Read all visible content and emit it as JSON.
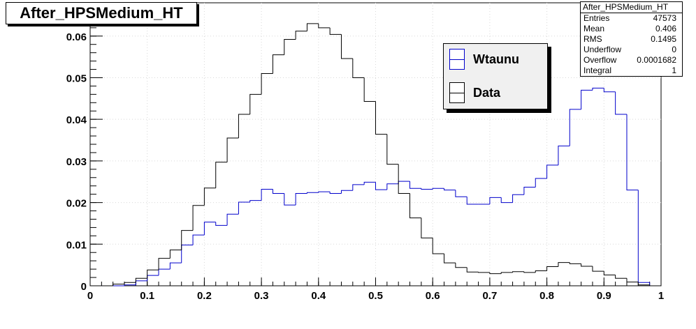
{
  "histogram_title": "After_HPSMedium_HT",
  "stats": {
    "name": "After_HPSMedium_HT",
    "rows": [
      {
        "key": "Entries",
        "value": "47573"
      },
      {
        "key": "Mean",
        "value": "0.406"
      },
      {
        "key": "RMS",
        "value": "0.1495"
      },
      {
        "key": "Underflow",
        "value": "0"
      },
      {
        "key": "Overflow",
        "value": "0.0001682"
      },
      {
        "key": "Integral",
        "value": "1"
      }
    ]
  },
  "legend": {
    "entries": [
      {
        "label": "Wtaunu",
        "color": "#0000cc"
      },
      {
        "label": "Data",
        "color": "#000000"
      }
    ]
  },
  "chart_data": {
    "type": "line",
    "title": "After_HPSMedium_HT",
    "xlabel": "",
    "ylabel": "",
    "xlim": [
      0,
      1
    ],
    "ylim": [
      0,
      0.068
    ],
    "x_ticks": [
      "0",
      "0.1",
      "0.2",
      "0.3",
      "0.4",
      "0.5",
      "0.6",
      "0.7",
      "0.8",
      "0.9",
      "1"
    ],
    "y_ticks": [
      "0",
      "0.01",
      "0.02",
      "0.03",
      "0.04",
      "0.05",
      "0.06"
    ],
    "grid": true,
    "legend_position": "top-right",
    "bin_width": 0.02,
    "bin_lower_edges": [
      0.0,
      0.02,
      0.04,
      0.06,
      0.08,
      0.1,
      0.12,
      0.14,
      0.16,
      0.18,
      0.2,
      0.22,
      0.24,
      0.26,
      0.28,
      0.3,
      0.32,
      0.34,
      0.36,
      0.38,
      0.4,
      0.42,
      0.44,
      0.46,
      0.48,
      0.5,
      0.52,
      0.54,
      0.56,
      0.58,
      0.6,
      0.62,
      0.64,
      0.66,
      0.68,
      0.7,
      0.72,
      0.74,
      0.76,
      0.78,
      0.8,
      0.82,
      0.84,
      0.86,
      0.88,
      0.9,
      0.92,
      0.94,
      0.96,
      0.98
    ],
    "series": [
      {
        "name": "Wtaunu",
        "color": "#0000cc",
        "values": [
          0,
          0,
          0,
          0.0002,
          0.0012,
          0.0025,
          0.004,
          0.0055,
          0.0098,
          0.0122,
          0.0153,
          0.0145,
          0.0172,
          0.0201,
          0.0205,
          0.0232,
          0.0222,
          0.0194,
          0.0222,
          0.0224,
          0.0226,
          0.0222,
          0.0229,
          0.0243,
          0.0249,
          0.0231,
          0.0245,
          0.0251,
          0.0234,
          0.0232,
          0.0234,
          0.023,
          0.0214,
          0.0196,
          0.0196,
          0.0212,
          0.02,
          0.0219,
          0.0237,
          0.0258,
          0.029,
          0.0336,
          0.0424,
          0.047,
          0.0475,
          0.0466,
          0.0412,
          0.023,
          0.0008,
          0
        ]
      },
      {
        "name": "Data",
        "color": "#000000",
        "values": [
          0,
          0,
          0.0004,
          0.0008,
          0.0018,
          0.0038,
          0.0066,
          0.0086,
          0.0133,
          0.0193,
          0.0235,
          0.0297,
          0.0355,
          0.0412,
          0.046,
          0.051,
          0.0555,
          0.0592,
          0.0612,
          0.063,
          0.062,
          0.0604,
          0.0546,
          0.05,
          0.0443,
          0.0364,
          0.0292,
          0.0222,
          0.0163,
          0.0115,
          0.0077,
          0.0055,
          0.0044,
          0.0033,
          0.0032,
          0.0029,
          0.0032,
          0.0034,
          0.0032,
          0.0036,
          0.0046,
          0.0056,
          0.0053,
          0.0047,
          0.0035,
          0.0026,
          0.0018,
          0.0009,
          0.0002,
          0
        ]
      }
    ]
  }
}
